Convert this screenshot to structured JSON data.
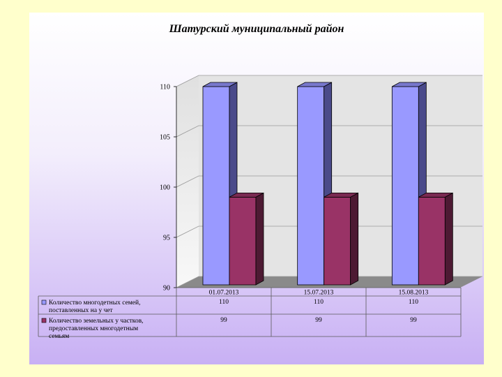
{
  "chart_data": {
    "type": "bar",
    "title": "Шатурский муниципальный район",
    "categories": [
      "01.07.2013",
      "15.07.2013",
      "15.08.2013"
    ],
    "series": [
      {
        "name": "Количество многодетных семей, поставленных на у чет",
        "legend_lines": [
          "Количество многодетных семей,",
          "поставленных на у чет"
        ],
        "values": [
          110,
          110,
          110
        ],
        "color": "#9999ff",
        "color_side": "#4a4a8a",
        "color_top": "#7777cc"
      },
      {
        "name": "Количество земельных у частков, предоставленных многодетным семьям",
        "legend_lines": [
          "Количество земельных у частков,",
          "предоставленных многодетным",
          "семьям"
        ],
        "values": [
          99,
          99,
          99
        ],
        "color": "#993366",
        "color_side": "#4d1a33",
        "color_top": "#7a2a52"
      }
    ],
    "ylim": [
      90,
      110
    ],
    "yticks": [
      90,
      95,
      100,
      105,
      110
    ],
    "grid": true,
    "legend_placement": "data-table"
  },
  "colors": {
    "page_background": "#ffffcc",
    "plot_wall": "#e4e4e4",
    "floor": "#8a8a8a"
  }
}
